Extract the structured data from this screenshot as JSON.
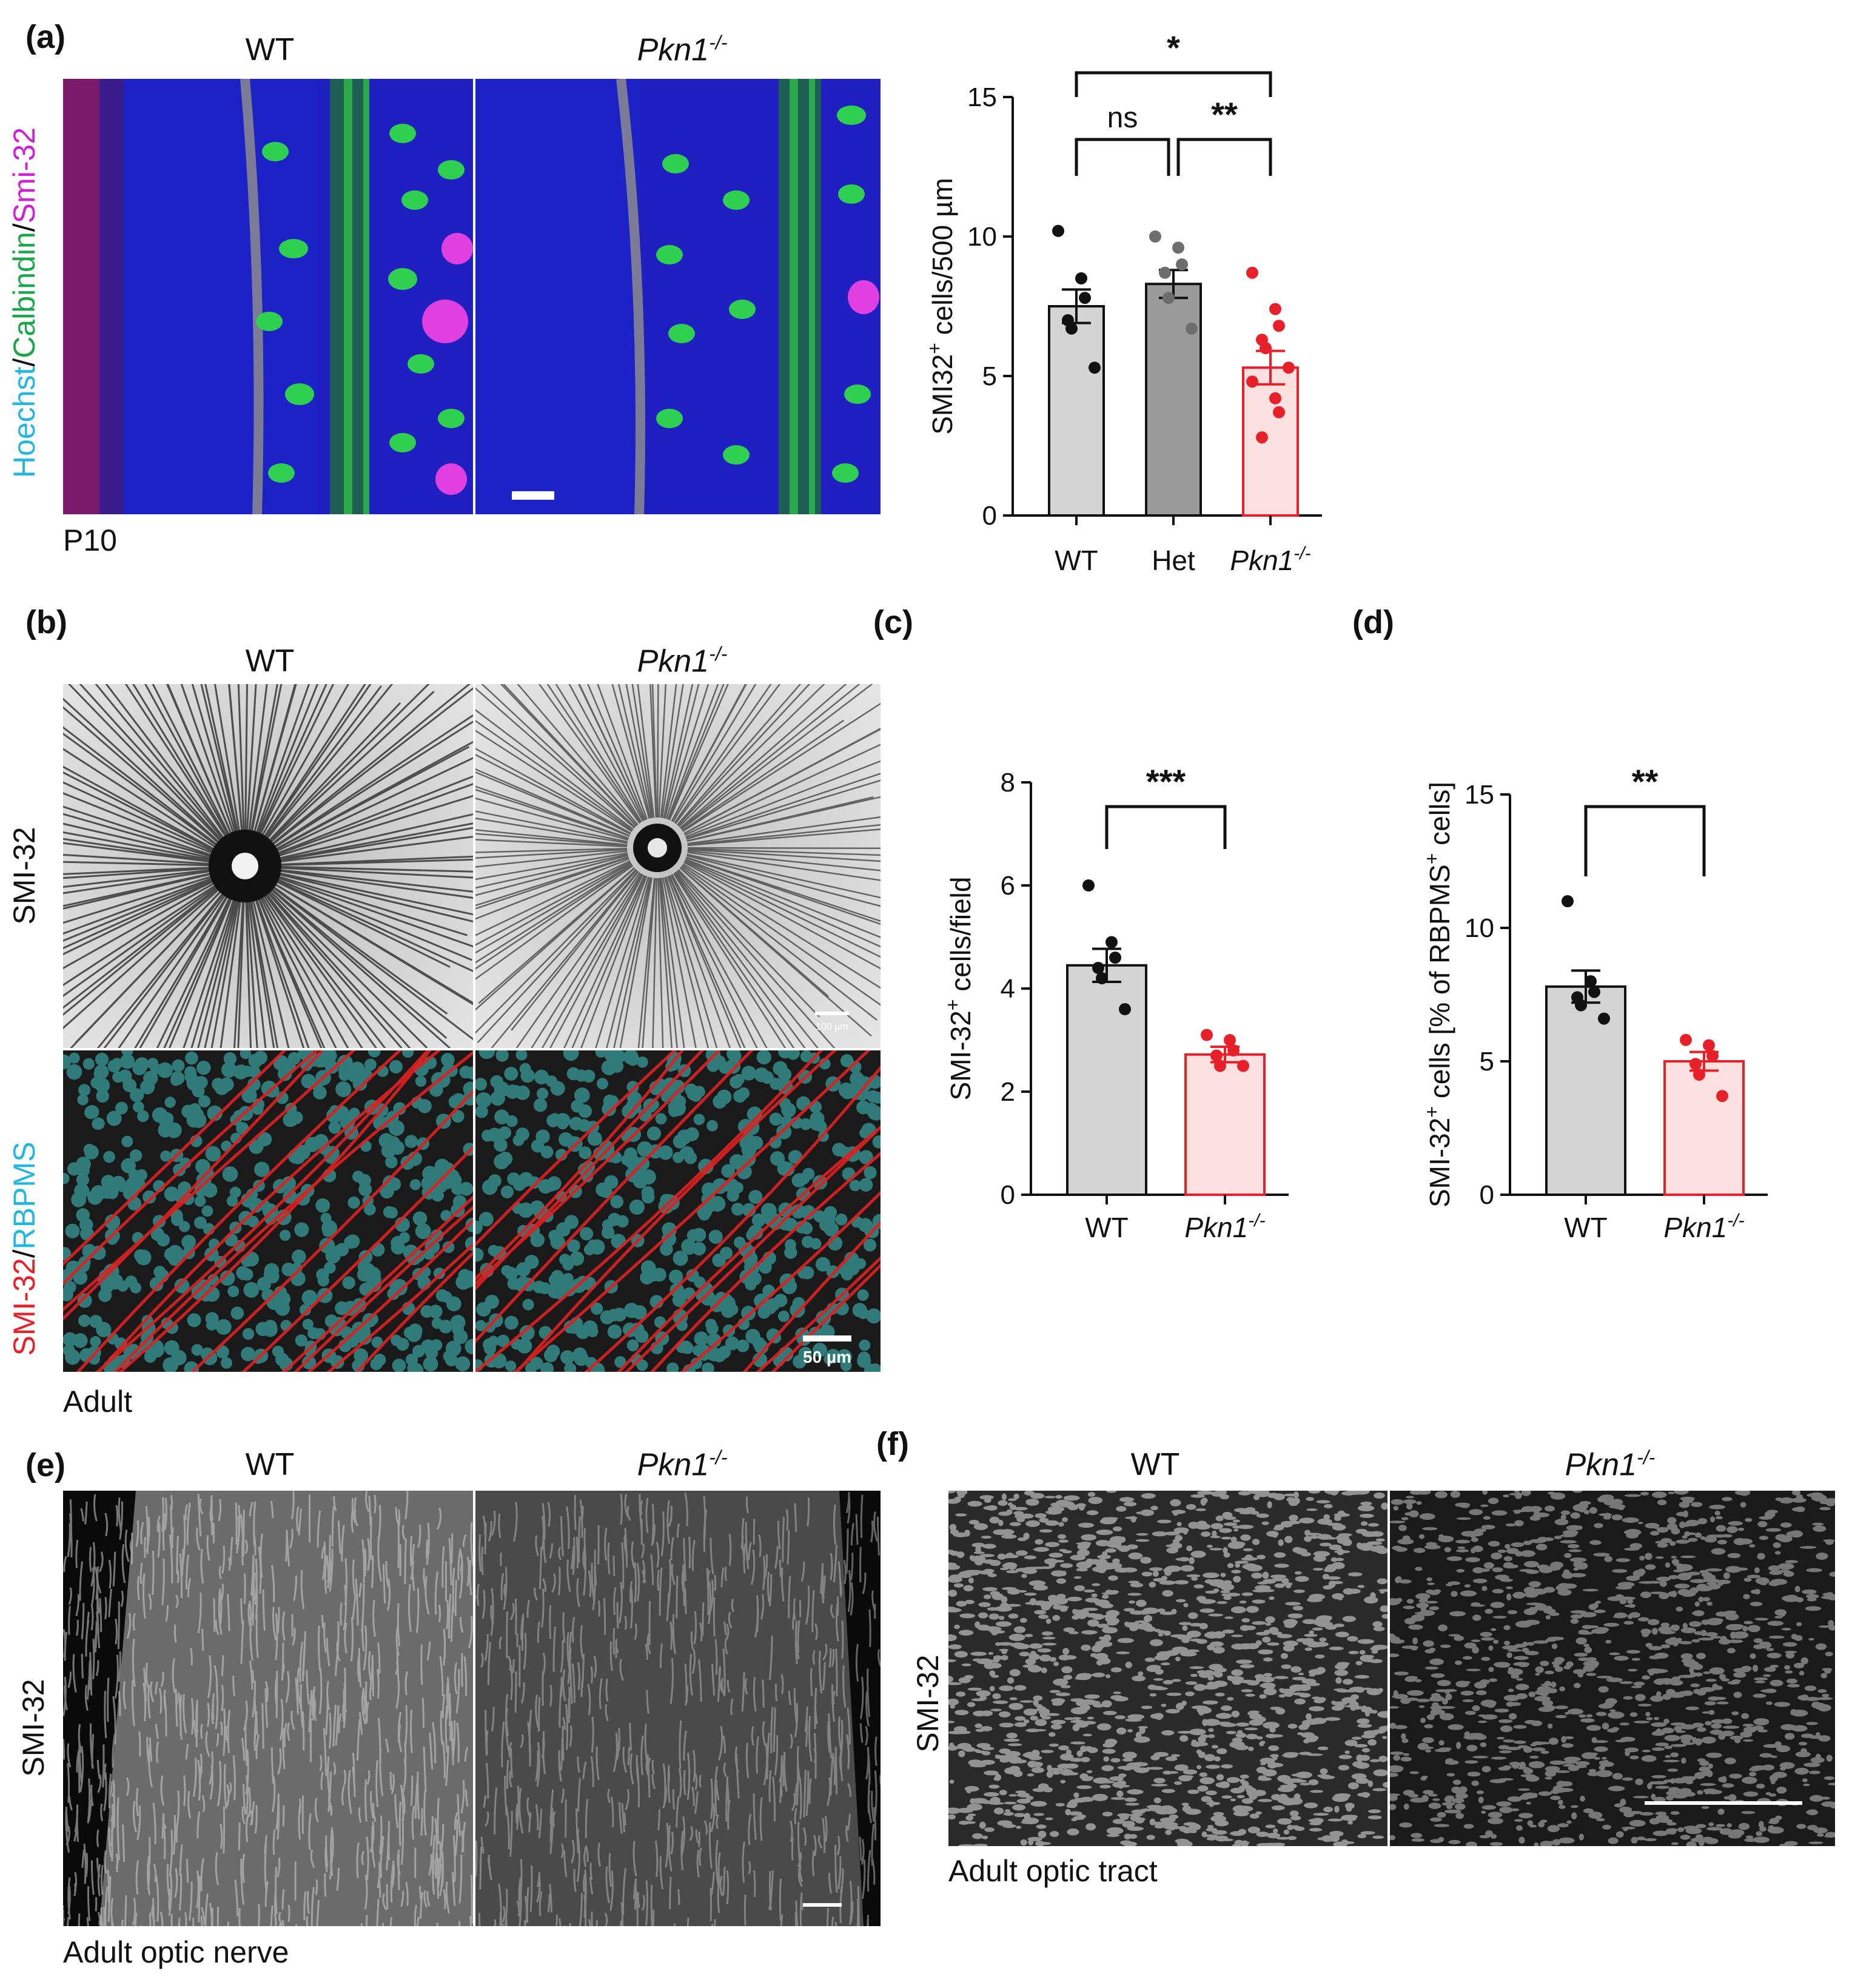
{
  "panel_labels": {
    "a": "(a)",
    "b": "(b)",
    "c": "(c)",
    "d": "(d)",
    "e": "(e)",
    "f": "(f)"
  },
  "panel_a": {
    "title_wt": "WT",
    "title_ko": "Pkn1",
    "title_ko_sup": "-/-",
    "stain_hoechst": "Hoechst",
    "stain_sep1": "/",
    "stain_calbindin": "Calbindin",
    "stain_sep2": "/",
    "stain_smi": "Smi-32",
    "age": "P10",
    "colors": {
      "hoechst": "#22b7e0",
      "calbindin": "#1aa64a",
      "smi": "#d21fd6"
    }
  },
  "panel_b": {
    "title_wt": "WT",
    "title_ko": "Pkn1",
    "title_ko_sup": "-/-",
    "row1_label": "SMI-32",
    "row2_label_smi": "SMI-32",
    "row2_label_sep": "/",
    "row2_label_rbpms": "RBPMS",
    "scale1": "100 µm",
    "scale2": "50 µm",
    "caption": "Adult",
    "colors": {
      "smi": "#e8202a",
      "rbpms": "#22b7e0"
    }
  },
  "panel_e": {
    "title_wt": "WT",
    "title_ko": "Pkn1",
    "title_ko_sup": "-/-",
    "row_label": "SMI-32",
    "caption": "Adult optic nerve"
  },
  "panel_f": {
    "title_wt": "WT",
    "title_ko": "Pkn1",
    "title_ko_sup": "-/-",
    "row_label": "SMI-32",
    "caption": "Adult optic tract"
  },
  "chart_data": [
    {
      "panel": "a",
      "type": "bar",
      "categories": [
        "WT",
        "Het",
        "Pkn1"
      ],
      "category_sup": [
        "",
        "",
        "-/-"
      ],
      "values": [
        7.5,
        8.3,
        5.3
      ],
      "sem": [
        0.6,
        0.5,
        0.6
      ],
      "points": [
        [
          10.2,
          8.5,
          7.8,
          7.0,
          6.7,
          5.3
        ],
        [
          10.0,
          9.6,
          9.0,
          8.7,
          7.8,
          6.7
        ],
        [
          8.7,
          7.4,
          6.8,
          6.3,
          6.0,
          5.3,
          4.8,
          4.2,
          3.7,
          2.8
        ]
      ],
      "colors": [
        "#d4d4d4",
        "#9b9b9b",
        "#fde0e0"
      ],
      "edge_colors": [
        "#111111",
        "#111111",
        "#e8202a"
      ],
      "point_colors": [
        "#111111",
        "#6e6e6e",
        "#e8202a"
      ],
      "ylabel_main": "SMI32",
      "ylabel_sup": "+",
      "ylabel_rest": " cells/500 µm",
      "ylim": [
        0,
        15
      ],
      "yticks": [
        0,
        5,
        10,
        15
      ],
      "significance": [
        {
          "from": 0,
          "to": 2,
          "label": "*"
        },
        {
          "from": 0,
          "to": 1,
          "label": "ns"
        },
        {
          "from": 1,
          "to": 2,
          "label": "**"
        }
      ]
    },
    {
      "panel": "c",
      "type": "bar",
      "categories": [
        "WT",
        "Pkn1"
      ],
      "category_sup": [
        "",
        "-/-"
      ],
      "values": [
        4.45,
        2.72
      ],
      "sem": [
        0.32,
        0.15
      ],
      "points": [
        [
          6.0,
          4.9,
          4.6,
          4.4,
          4.2,
          3.6
        ],
        [
          3.1,
          3.0,
          2.8,
          2.7,
          2.5,
          2.5
        ]
      ],
      "colors": [
        "#d4d4d4",
        "#fde0e0"
      ],
      "edge_colors": [
        "#111111",
        "#e8202a"
      ],
      "point_colors": [
        "#111111",
        "#e8202a"
      ],
      "ylabel_main": "SMI-32",
      "ylabel_sup": "+",
      "ylabel_rest": " cells/field",
      "ylim": [
        0,
        8
      ],
      "yticks": [
        0,
        2,
        4,
        6,
        8
      ],
      "significance": [
        {
          "from": 0,
          "to": 1,
          "label": "***"
        }
      ]
    },
    {
      "panel": "d",
      "type": "bar",
      "categories": [
        "WT",
        "Pkn1"
      ],
      "category_sup": [
        "",
        "-/-"
      ],
      "values": [
        7.8,
        5.0
      ],
      "sem": [
        0.6,
        0.35
      ],
      "points": [
        [
          11.0,
          8.0,
          7.6,
          7.4,
          7.1,
          6.6
        ],
        [
          5.8,
          5.6,
          5.2,
          4.9,
          4.5,
          3.7
        ]
      ],
      "colors": [
        "#d4d4d4",
        "#fde0e0"
      ],
      "edge_colors": [
        "#111111",
        "#e8202a"
      ],
      "point_colors": [
        "#111111",
        "#e8202a"
      ],
      "ylabel_main": "SMI-32",
      "ylabel_sup": "+",
      "ylabel_rest": " cells [% of RBPMS",
      "ylabel_sup2": "+",
      "ylabel_end": " cells]",
      "ylim": [
        0,
        15
      ],
      "yticks": [
        0,
        5,
        10,
        15
      ],
      "significance": [
        {
          "from": 0,
          "to": 1,
          "label": "**"
        }
      ]
    }
  ]
}
